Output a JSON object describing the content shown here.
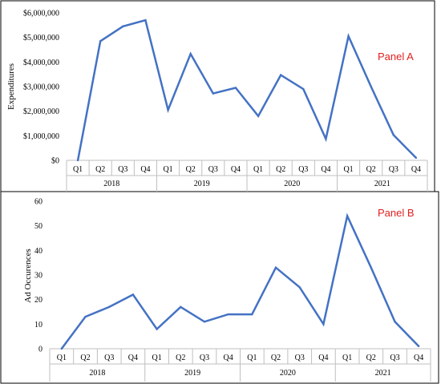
{
  "chart_data": [
    {
      "type": "line",
      "panel_label": "Panel A",
      "ylabel": "Expenditures",
      "xlabel": "",
      "ylim": [
        0,
        6000000
      ],
      "yticks": [
        0,
        1000000,
        2000000,
        3000000,
        4000000,
        5000000,
        6000000
      ],
      "ytick_labels": [
        "$0",
        "$1,000,000",
        "$2,000,000",
        "$3,000,000",
        "$4,000,000",
        "$5,000,000",
        "$6,000,000"
      ],
      "grid": false,
      "categories": [
        "Q1",
        "Q2",
        "Q3",
        "Q4",
        "Q1",
        "Q2",
        "Q3",
        "Q4",
        "Q1",
        "Q2",
        "Q3",
        "Q4",
        "Q1",
        "Q2",
        "Q3",
        "Q4"
      ],
      "groups": [
        "2018",
        "2019",
        "2020",
        "2021"
      ],
      "values": [
        0,
        4850000,
        5450000,
        5700000,
        2050000,
        4330000,
        2720000,
        2950000,
        1800000,
        3470000,
        2900000,
        870000,
        5050000,
        3000000,
        1030000,
        100000
      ],
      "color": "#4472c4",
      "label_color": "#e02020"
    },
    {
      "type": "line",
      "panel_label": "Panel B",
      "ylabel": "Ad Occurences",
      "xlabel": "",
      "ylim": [
        0,
        60
      ],
      "yticks": [
        0,
        10,
        20,
        30,
        40,
        50,
        60
      ],
      "ytick_labels": [
        "0",
        "10",
        "20",
        "30",
        "40",
        "50",
        "60"
      ],
      "grid": false,
      "categories": [
        "Q1",
        "Q2",
        "Q3",
        "Q4",
        "Q1",
        "Q2",
        "Q3",
        "Q4",
        "Q1",
        "Q2",
        "Q3",
        "Q4",
        "Q1",
        "Q2",
        "Q3",
        "Q4"
      ],
      "groups": [
        "2018",
        "2019",
        "2020",
        "2021"
      ],
      "values": [
        0,
        13,
        17,
        22,
        8,
        17,
        11,
        14,
        14,
        33,
        25,
        10,
        54,
        33,
        11,
        1
      ],
      "color": "#4472c4",
      "label_color": "#e02020"
    }
  ]
}
